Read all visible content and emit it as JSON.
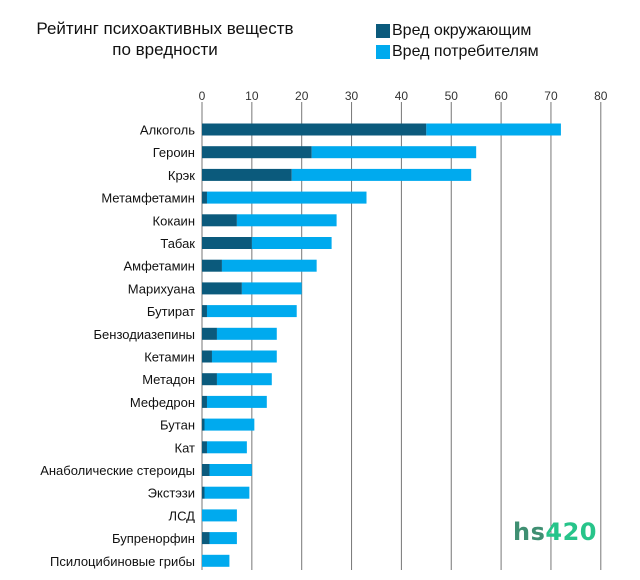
{
  "title_line1": "Рейтинг психоактивных веществ",
  "title_line2": "по вредности",
  "logo": {
    "text": "hs",
    "number": "420"
  },
  "colors": {
    "others": "#0b5a7c",
    "users": "#00aaee",
    "grid": "#777777"
  },
  "chart_data": {
    "type": "bar",
    "orientation": "horizontal",
    "stacked": true,
    "title": "Рейтинг психоактивных веществ по вредности",
    "xlim": [
      0,
      80
    ],
    "xticks": [
      0,
      10,
      20,
      30,
      40,
      50,
      60,
      70,
      80
    ],
    "x_axis_position": "top",
    "grid": true,
    "legend_position": "top-right",
    "categories": [
      "Алкоголь",
      "Героин",
      "Крэк",
      "Метамфетамин",
      "Кокаин",
      "Табак",
      "Амфетамин",
      "Марихуана",
      "Бутират",
      "Бензодиазепины",
      "Кетамин",
      "Метадон",
      "Мефедрон",
      "Бутан",
      "Кат",
      "Анаболические стероиды",
      "Экстэзи",
      "ЛСД",
      "Бупренорфин",
      "Псилоцибиновые грибы"
    ],
    "series": [
      {
        "name": "Вред окружающим",
        "color": "#0b5a7c",
        "values": [
          45,
          22,
          18,
          1,
          7,
          10,
          4,
          8,
          1,
          3,
          2,
          3,
          1,
          0.5,
          1,
          1.5,
          0.5,
          0,
          1.5,
          0
        ]
      },
      {
        "name": "Вред потребителям",
        "color": "#00aaee",
        "values": [
          27,
          33,
          36,
          32,
          20,
          16,
          19,
          12,
          18,
          12,
          13,
          11,
          12,
          10,
          8,
          8.5,
          9,
          7,
          5.5,
          5.5
        ]
      }
    ]
  }
}
